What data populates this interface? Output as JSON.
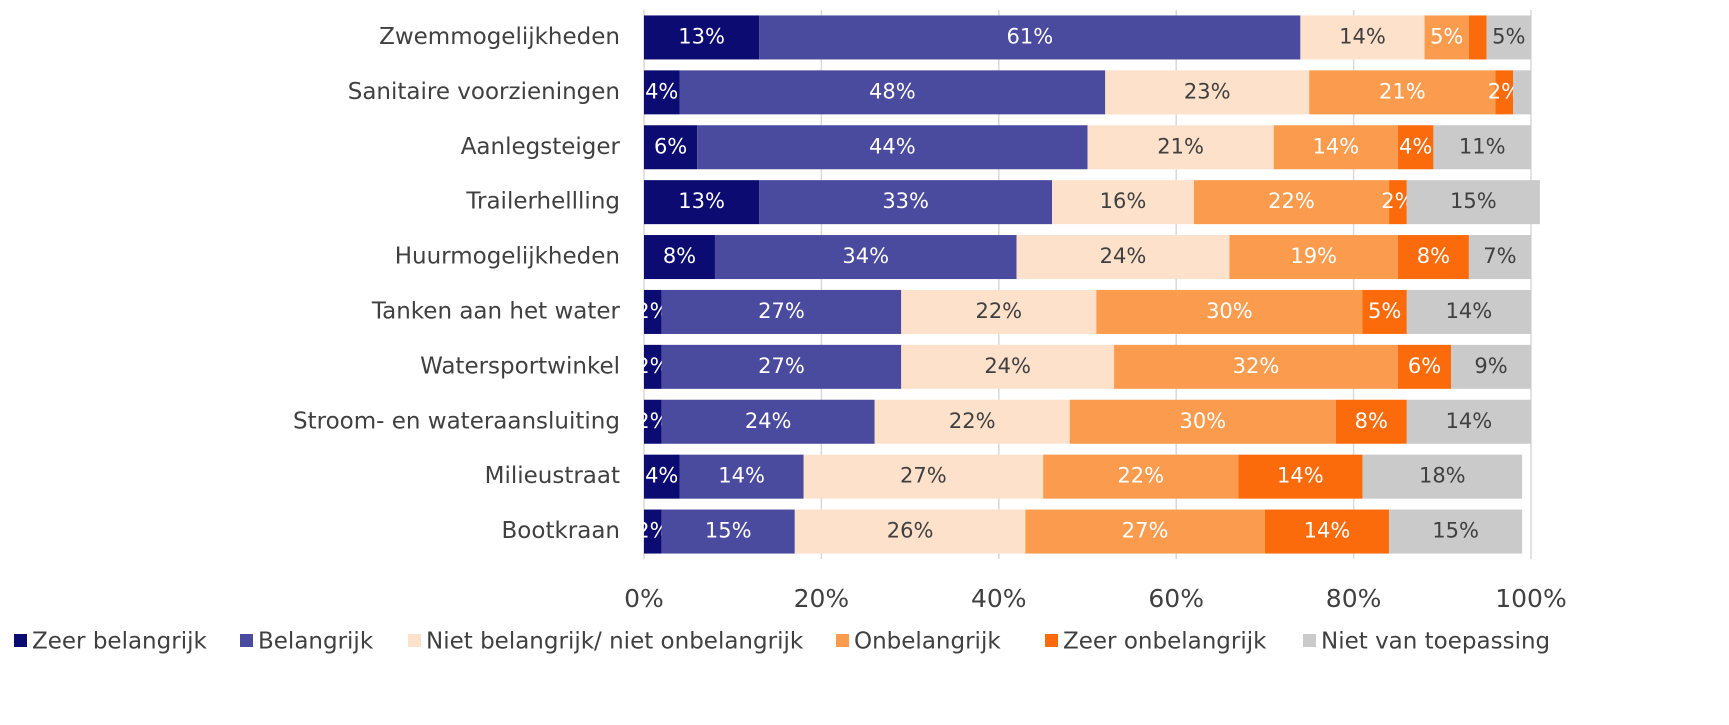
{
  "chart_data": {
    "type": "bar",
    "orientation": "horizontal",
    "categories": [
      "Zwemmogelijkheden",
      "Sanitaire voorzieningen",
      "Aanlegsteiger",
      "Trailerhellling",
      "Huurmogelijkheden",
      "Tanken aan het water",
      "Watersportwinkel",
      "Stroom- en wateraansluiting",
      "Milieustraat",
      "Bootkraan"
    ],
    "series": [
      {
        "name": "Zeer belangrijk",
        "color": "#0b0b72",
        "values": [
          13,
          4,
          6,
          13,
          8,
          2,
          2,
          2,
          4,
          2
        ],
        "value_labels": [
          "13%",
          "4%",
          "6%",
          "13%",
          "8%",
          "2%",
          "2%",
          "2%",
          "4%",
          "2%"
        ]
      },
      {
        "name": "Belangrijk",
        "color": "#4a4a9e",
        "values": [
          61,
          48,
          44,
          33,
          34,
          27,
          27,
          24,
          14,
          15
        ],
        "value_labels": [
          "61%",
          "48%",
          "44%",
          "33%",
          "34%",
          "27%",
          "27%",
          "24%",
          "14%",
          "15%"
        ]
      },
      {
        "name": "Niet belangrijk/ niet onbelangrijk",
        "color": "#fde1cb",
        "values": [
          14,
          23,
          21,
          16,
          24,
          22,
          24,
          22,
          27,
          26
        ],
        "value_labels": [
          "14%",
          "23%",
          "21%",
          "16%",
          "24%",
          "22%",
          "24%",
          "22%",
          "27%",
          "26%"
        ]
      },
      {
        "name": "Onbelangrijk",
        "color": "#fb9b4e",
        "values": [
          5,
          21,
          14,
          22,
          19,
          30,
          32,
          30,
          22,
          27
        ],
        "value_labels": [
          "5%",
          "21%",
          "14%",
          "22%",
          "19%",
          "30%",
          "32%",
          "30%",
          "22%",
          "27%"
        ]
      },
      {
        "name": "Zeer onbelangrijk",
        "color": "#fb6b0c",
        "values": [
          2,
          2,
          4,
          2,
          8,
          5,
          6,
          8,
          14,
          14
        ],
        "value_labels": [
          null,
          "2%",
          "4%",
          "2%",
          "8%",
          "5%",
          "6%",
          "8%",
          "14%",
          "14%"
        ]
      },
      {
        "name": "Niet van toepassing",
        "color": "#cacaca",
        "values": [
          5,
          2,
          11,
          15,
          7,
          14,
          9,
          14,
          18,
          15
        ],
        "value_labels": [
          "5%",
          null,
          "11%",
          "15%",
          "7%",
          "14%",
          "9%",
          "14%",
          "18%",
          "15%"
        ]
      }
    ],
    "xlim": [
      0,
      100
    ],
    "xticks": [
      {
        "value": 0,
        "label": "0%"
      },
      {
        "value": 20,
        "label": "20%"
      },
      {
        "value": 40,
        "label": "40%"
      },
      {
        "value": 60,
        "label": "60%"
      },
      {
        "value": 80,
        "label": "80%"
      },
      {
        "value": 100,
        "label": "100%"
      }
    ],
    "grid": true,
    "legend": "bottom"
  }
}
